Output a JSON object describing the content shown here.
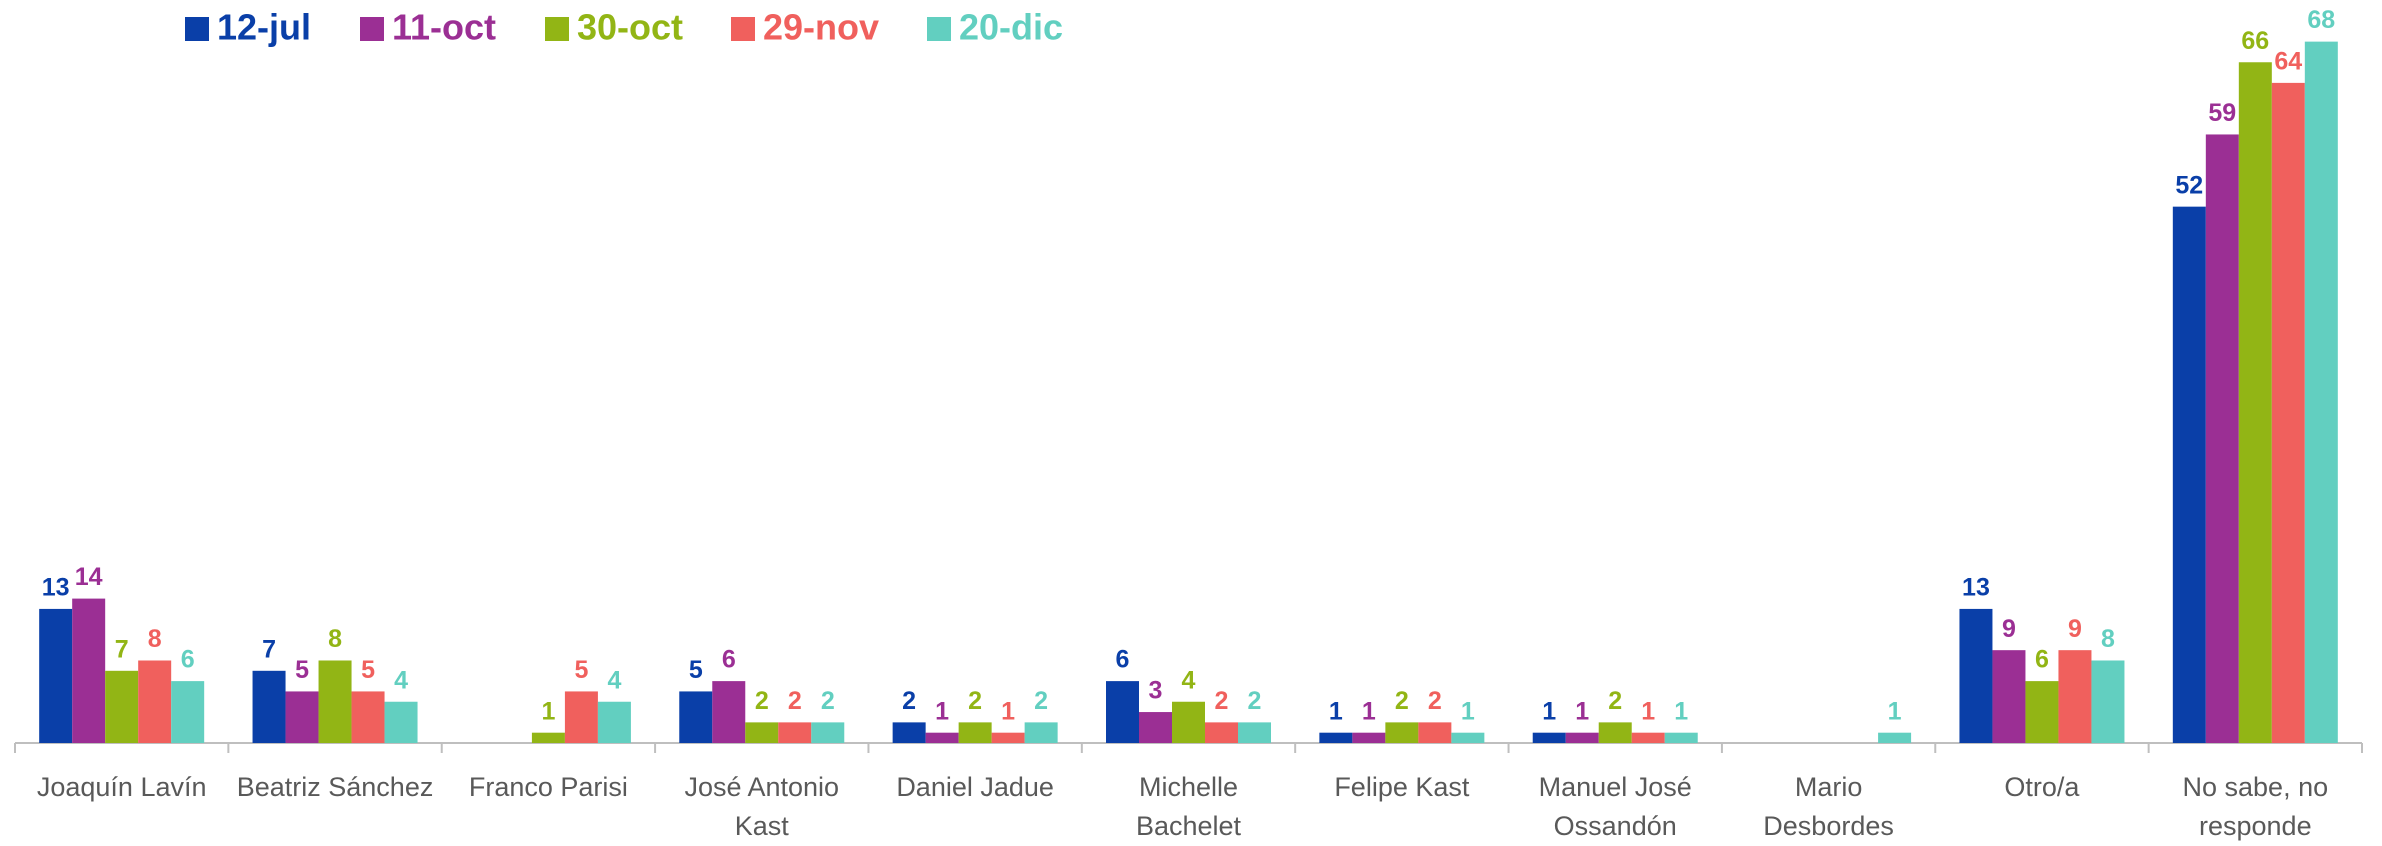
{
  "chart_data": {
    "type": "bar",
    "categories": [
      "Joaquín Lavín",
      "Beatriz Sánchez",
      "Franco Parisi",
      "José Antonio Kast",
      "Daniel Jadue",
      "Michelle Bachelet",
      "Felipe Kast",
      "Manuel José Ossandón",
      "Mario Desbordes",
      "Otro/a",
      "No sabe, no responde"
    ],
    "series": [
      {
        "name": "12-jul",
        "color": "#0a3fa8",
        "values": [
          13,
          7,
          null,
          5,
          2,
          6,
          1,
          1,
          null,
          13,
          52
        ]
      },
      {
        "name": "11-oct",
        "color": "#9b2f94",
        "values": [
          14,
          5,
          null,
          6,
          1,
          3,
          1,
          1,
          null,
          9,
          59
        ]
      },
      {
        "name": "30-oct",
        "color": "#92b515",
        "values": [
          7,
          8,
          1,
          2,
          2,
          4,
          2,
          2,
          null,
          6,
          66
        ]
      },
      {
        "name": "29-nov",
        "color": "#f0605d",
        "values": [
          8,
          5,
          5,
          2,
          1,
          2,
          2,
          1,
          null,
          9,
          64
        ]
      },
      {
        "name": "20-dic",
        "color": "#62cfc0",
        "values": [
          6,
          4,
          4,
          2,
          2,
          2,
          1,
          1,
          1,
          8,
          68
        ]
      }
    ],
    "ylim": [
      0,
      70
    ],
    "legend": "top-left"
  }
}
